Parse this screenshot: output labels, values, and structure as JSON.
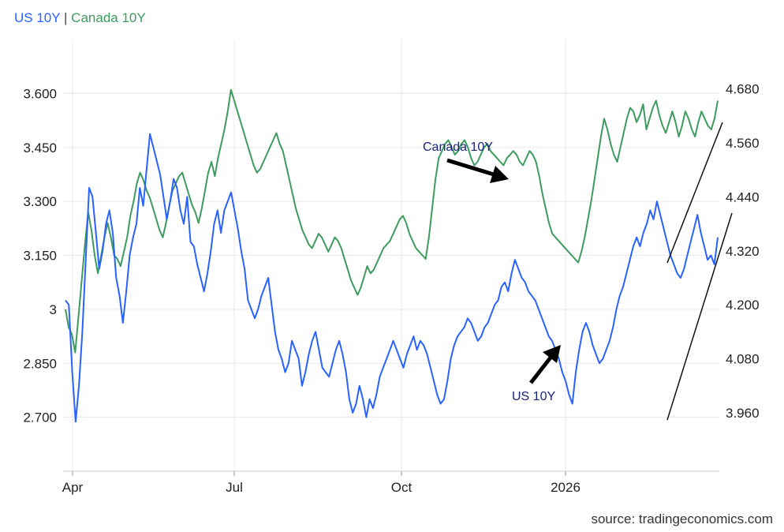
{
  "legend": {
    "us_label": "US 10Y",
    "separator": "|",
    "ca_label": "Canada 10Y"
  },
  "source": "source: tradingeconomics.com",
  "colors": {
    "us": "#2962ff",
    "canada": "#3d9b5e",
    "grid": "#e8e8e8",
    "trend": "#111111"
  },
  "chart_data": {
    "type": "line",
    "x_ticks": [
      "Apr",
      "Jul",
      "Oct",
      "2026"
    ],
    "left_axis": {
      "ticks": [
        "3.600",
        "3.450",
        "3.300",
        "3.150",
        "3",
        "2.850",
        "2.700"
      ],
      "range": [
        2.55,
        3.75
      ]
    },
    "right_axis": {
      "ticks": [
        "4.680",
        "4.560",
        "4.440",
        "4.320",
        "4.200",
        "4.080",
        "3.960"
      ],
      "range": [
        3.83,
        4.79
      ]
    },
    "grid": true,
    "series": [
      {
        "name": "US 10Y",
        "axis": "right",
        "values": [
          4.21,
          4.2,
          4.05,
          3.94,
          4.02,
          4.14,
          4.3,
          4.46,
          4.44,
          4.36,
          4.28,
          4.32,
          4.38,
          4.41,
          4.36,
          4.26,
          4.22,
          4.16,
          4.23,
          4.31,
          4.35,
          4.38,
          4.46,
          4.42,
          4.5,
          4.58,
          4.55,
          4.52,
          4.49,
          4.44,
          4.39,
          4.43,
          4.48,
          4.46,
          4.41,
          4.38,
          4.44,
          4.34,
          4.33,
          4.29,
          4.26,
          4.23,
          4.27,
          4.32,
          4.38,
          4.41,
          4.36,
          4.41,
          4.43,
          4.45,
          4.41,
          4.37,
          4.32,
          4.28,
          4.21,
          4.19,
          4.17,
          4.19,
          4.22,
          4.24,
          4.26,
          4.2,
          4.14,
          4.1,
          4.08,
          4.05,
          4.07,
          4.12,
          4.1,
          4.08,
          4.02,
          4.05,
          4.09,
          4.12,
          4.14,
          4.1,
          4.06,
          4.05,
          4.04,
          4.07,
          4.1,
          4.12,
          4.09,
          4.05,
          3.99,
          3.96,
          3.98,
          4.02,
          3.99,
          3.95,
          3.99,
          3.97,
          4.0,
          4.04,
          4.06,
          4.08,
          4.1,
          4.12,
          4.1,
          4.08,
          4.06,
          4.09,
          4.11,
          4.13,
          4.1,
          4.12,
          4.11,
          4.09,
          4.06,
          4.03,
          4.0,
          3.98,
          3.99,
          4.03,
          4.08,
          4.11,
          4.13,
          4.14,
          4.15,
          4.17,
          4.16,
          4.14,
          4.12,
          4.13,
          4.15,
          4.16,
          4.18,
          4.2,
          4.21,
          4.24,
          4.25,
          4.23,
          4.27,
          4.3,
          4.28,
          4.26,
          4.25,
          4.23,
          4.22,
          4.21,
          4.19,
          4.17,
          4.15,
          4.13,
          4.12,
          4.1,
          4.08,
          4.05,
          4.03,
          4.0,
          3.98,
          4.05,
          4.1,
          4.14,
          4.16,
          4.14,
          4.11,
          4.09,
          4.07,
          4.08,
          4.1,
          4.12,
          4.15,
          4.19,
          4.22,
          4.24,
          4.27,
          4.3,
          4.33,
          4.35,
          4.33,
          4.36,
          4.38,
          4.41,
          4.39,
          4.43,
          4.4,
          4.37,
          4.34,
          4.31,
          4.29,
          4.27,
          4.26,
          4.28,
          4.31,
          4.34,
          4.37,
          4.4,
          4.36,
          4.33,
          4.3,
          4.31,
          4.29,
          4.35
        ]
      },
      {
        "name": "Canada 10Y",
        "axis": "left",
        "values": [
          3.0,
          2.95,
          2.93,
          2.88,
          2.98,
          3.08,
          3.18,
          3.27,
          3.22,
          3.15,
          3.1,
          3.15,
          3.2,
          3.24,
          3.2,
          3.15,
          3.14,
          3.12,
          3.16,
          3.2,
          3.26,
          3.3,
          3.35,
          3.38,
          3.36,
          3.33,
          3.31,
          3.28,
          3.25,
          3.22,
          3.2,
          3.24,
          3.29,
          3.33,
          3.35,
          3.37,
          3.38,
          3.35,
          3.32,
          3.29,
          3.27,
          3.24,
          3.28,
          3.33,
          3.38,
          3.41,
          3.37,
          3.42,
          3.46,
          3.5,
          3.55,
          3.61,
          3.58,
          3.55,
          3.52,
          3.49,
          3.46,
          3.43,
          3.4,
          3.38,
          3.39,
          3.41,
          3.43,
          3.45,
          3.47,
          3.49,
          3.46,
          3.44,
          3.4,
          3.36,
          3.32,
          3.28,
          3.25,
          3.22,
          3.2,
          3.18,
          3.17,
          3.19,
          3.21,
          3.2,
          3.18,
          3.16,
          3.18,
          3.2,
          3.19,
          3.17,
          3.14,
          3.11,
          3.08,
          3.06,
          3.04,
          3.06,
          3.09,
          3.12,
          3.1,
          3.11,
          3.13,
          3.15,
          3.17,
          3.18,
          3.19,
          3.21,
          3.23,
          3.25,
          3.26,
          3.24,
          3.21,
          3.19,
          3.17,
          3.16,
          3.15,
          3.14,
          3.2,
          3.28,
          3.36,
          3.42,
          3.44,
          3.46,
          3.47,
          3.45,
          3.43,
          3.44,
          3.46,
          3.47,
          3.45,
          3.42,
          3.4,
          3.41,
          3.43,
          3.45,
          3.46,
          3.44,
          3.43,
          3.42,
          3.41,
          3.4,
          3.42,
          3.43,
          3.44,
          3.43,
          3.41,
          3.4,
          3.42,
          3.44,
          3.43,
          3.41,
          3.37,
          3.32,
          3.28,
          3.24,
          3.21,
          3.2,
          3.19,
          3.18,
          3.17,
          3.16,
          3.15,
          3.14,
          3.13,
          3.16,
          3.2,
          3.25,
          3.3,
          3.36,
          3.42,
          3.48,
          3.53,
          3.5,
          3.46,
          3.43,
          3.41,
          3.45,
          3.49,
          3.53,
          3.56,
          3.55,
          3.52,
          3.54,
          3.57,
          3.5,
          3.53,
          3.56,
          3.58,
          3.54,
          3.51,
          3.49,
          3.52,
          3.55,
          3.52,
          3.48,
          3.51,
          3.55,
          3.53,
          3.5,
          3.48,
          3.52,
          3.55,
          3.53,
          3.51,
          3.5,
          3.53,
          3.58
        ]
      }
    ]
  }
}
